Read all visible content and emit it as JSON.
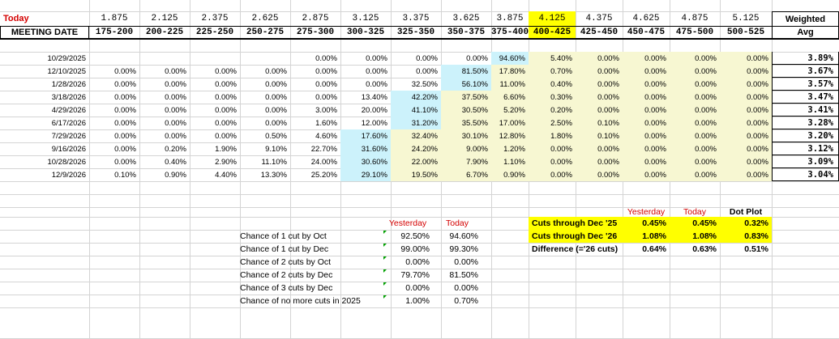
{
  "header": {
    "today_label": "Today",
    "meeting_date_label": "MEETING DATE",
    "weighted_label": "Weighted",
    "avg_label": "Avg",
    "rates": [
      "1.875",
      "2.125",
      "2.375",
      "2.625",
      "2.875",
      "3.125",
      "3.375",
      "3.625",
      "3.875",
      "4.125",
      "4.375",
      "4.625",
      "4.875",
      "5.125"
    ],
    "ranges": [
      "175-200",
      "200-225",
      "225-250",
      "250-275",
      "275-300",
      "300-325",
      "325-350",
      "350-375",
      "375-400",
      "400-425",
      "425-450",
      "450-475",
      "475-500",
      "500-525"
    ]
  },
  "rows": [
    {
      "date": "10/29/2025",
      "values": [
        "",
        "",
        "",
        "",
        "0.00%",
        "0.00%",
        "0.00%",
        "0.00%",
        "94.60%",
        "5.40%",
        "0.00%",
        "0.00%",
        "0.00%",
        "0.00%"
      ],
      "avg": "3.89%",
      "hl": 8
    },
    {
      "date": "12/10/2025",
      "values": [
        "0.00%",
        "0.00%",
        "0.00%",
        "0.00%",
        "0.00%",
        "0.00%",
        "0.00%",
        "81.50%",
        "17.80%",
        "0.70%",
        "0.00%",
        "0.00%",
        "0.00%",
        "0.00%"
      ],
      "avg": "3.67%",
      "hl": 7
    },
    {
      "date": "1/28/2026",
      "values": [
        "0.00%",
        "0.00%",
        "0.00%",
        "0.00%",
        "0.00%",
        "0.00%",
        "32.50%",
        "56.10%",
        "11.00%",
        "0.40%",
        "0.00%",
        "0.00%",
        "0.00%",
        "0.00%"
      ],
      "avg": "3.57%",
      "hl": 7
    },
    {
      "date": "3/18/2026",
      "values": [
        "0.00%",
        "0.00%",
        "0.00%",
        "0.00%",
        "0.00%",
        "13.40%",
        "42.20%",
        "37.50%",
        "6.60%",
        "0.30%",
        "0.00%",
        "0.00%",
        "0.00%",
        "0.00%"
      ],
      "avg": "3.47%",
      "hl": 6
    },
    {
      "date": "4/29/2026",
      "values": [
        "0.00%",
        "0.00%",
        "0.00%",
        "0.00%",
        "3.00%",
        "20.00%",
        "41.10%",
        "30.50%",
        "5.20%",
        "0.20%",
        "0.00%",
        "0.00%",
        "0.00%",
        "0.00%"
      ],
      "avg": "3.41%",
      "hl": 6
    },
    {
      "date": "6/17/2026",
      "values": [
        "0.00%",
        "0.00%",
        "0.00%",
        "0.00%",
        "1.60%",
        "12.00%",
        "31.20%",
        "35.50%",
        "17.00%",
        "2.50%",
        "0.10%",
        "0.00%",
        "0.00%",
        "0.00%"
      ],
      "avg": "3.28%",
      "hl": 6
    },
    {
      "date": "7/29/2026",
      "values": [
        "0.00%",
        "0.00%",
        "0.00%",
        "0.50%",
        "4.60%",
        "17.60%",
        "32.40%",
        "30.10%",
        "12.80%",
        "1.80%",
        "0.10%",
        "0.00%",
        "0.00%",
        "0.00%"
      ],
      "avg": "3.20%",
      "hl": 5
    },
    {
      "date": "9/16/2026",
      "values": [
        "0.00%",
        "0.20%",
        "1.90%",
        "9.10%",
        "22.70%",
        "31.60%",
        "24.20%",
        "9.00%",
        "1.20%",
        "0.00%",
        "0.00%",
        "0.00%",
        "0.00%",
        "0.00%"
      ],
      "avg": "3.12%",
      "hl": 5
    },
    {
      "date": "10/28/2026",
      "values": [
        "0.00%",
        "0.40%",
        "2.90%",
        "11.10%",
        "24.00%",
        "30.60%",
        "22.00%",
        "7.90%",
        "1.10%",
        "0.00%",
        "0.00%",
        "0.00%",
        "0.00%",
        "0.00%"
      ],
      "avg": "3.09%",
      "hl": 5
    },
    {
      "date": "12/9/2026",
      "values": [
        "0.10%",
        "0.90%",
        "4.40%",
        "13.30%",
        "25.20%",
        "29.10%",
        "19.50%",
        "6.70%",
        "0.90%",
        "0.00%",
        "0.00%",
        "0.00%",
        "0.00%",
        "0.00%"
      ],
      "avg": "3.04%",
      "hl": 5
    }
  ],
  "chances": {
    "yesterday_label": "Yesterday",
    "today_label": "Today",
    "items": [
      {
        "label": "Chance of 1 cut by Oct",
        "yesterday": "92.50%",
        "today": "94.60%"
      },
      {
        "label": "Chance of 1 cut by Dec",
        "yesterday": "99.00%",
        "today": "99.30%"
      },
      {
        "label": "Chance of 2 cuts by Oct",
        "yesterday": "0.00%",
        "today": "0.00%"
      },
      {
        "label": "Chance of 2 cuts by Dec",
        "yesterday": "79.70%",
        "today": "81.50%"
      },
      {
        "label": "Chance of 3 cuts by Dec",
        "yesterday": "0.00%",
        "today": "0.00%"
      },
      {
        "label": "Chance of no more cuts in 2025",
        "yesterday": "1.00%",
        "today": "0.70%"
      }
    ]
  },
  "cuts": {
    "yesterday_label": "Yesterday",
    "today_label": "Today",
    "dotplot_label": "Dot Plot",
    "items": [
      {
        "label": "Cuts through Dec '25",
        "yesterday": "0.45%",
        "today": "0.45%",
        "dotplot": "0.32%",
        "yellow": true
      },
      {
        "label": "Cuts through Dec '26",
        "yesterday": "1.08%",
        "today": "1.08%",
        "dotplot": "0.83%",
        "yellow": true
      },
      {
        "label": "Difference (='26 cuts)",
        "yesterday": "0.64%",
        "today": "0.63%",
        "dotplot": "0.51%",
        "yellow": false
      }
    ]
  },
  "colors": {
    "cyan_highlight": "#ccf2fb",
    "cream_fill": "#f7f7d2",
    "yellow_fill": "#ffff00",
    "red_text": "#d40000",
    "gridline": "#d4d4d4",
    "triangle": "#00a000"
  }
}
